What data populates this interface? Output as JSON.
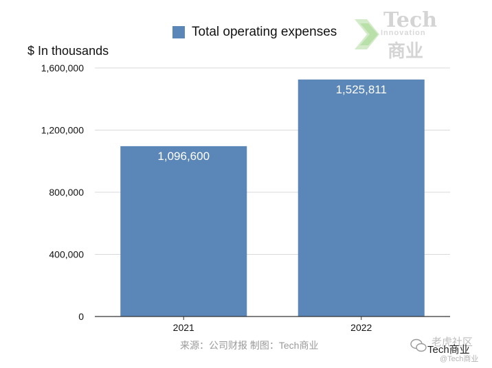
{
  "chart_data": {
    "type": "bar",
    "title": "",
    "legend": [
      "Total operating expenses"
    ],
    "legend_position": "top-center",
    "ylabel": "$ In thousands",
    "xlabel": "",
    "categories": [
      "2021",
      "2022"
    ],
    "series": [
      {
        "name": "Total operating expenses",
        "values": [
          1096600,
          1525811
        ]
      }
    ],
    "data_labels": [
      "1,096,600",
      "1,525,811"
    ],
    "ylim": [
      0,
      1600000
    ],
    "yticks": [
      0,
      400000,
      800000,
      1200000,
      1600000
    ],
    "ytick_labels": [
      "0",
      "400,000",
      "800,000",
      "1,200,000",
      "1,600,000"
    ],
    "grid": true
  },
  "colors": {
    "bar": "#5b86b8",
    "grid": "#d9d9d9",
    "axis": "#333333"
  },
  "source_note": "来源：公司财报 制图：Tech商业",
  "logo": {
    "line1": "Tech",
    "line2": "Innovation",
    "line3": "商业"
  },
  "watermark": {
    "line1": "老虎社区",
    "line2": "Tech商业",
    "line3": "@Tech商业"
  }
}
